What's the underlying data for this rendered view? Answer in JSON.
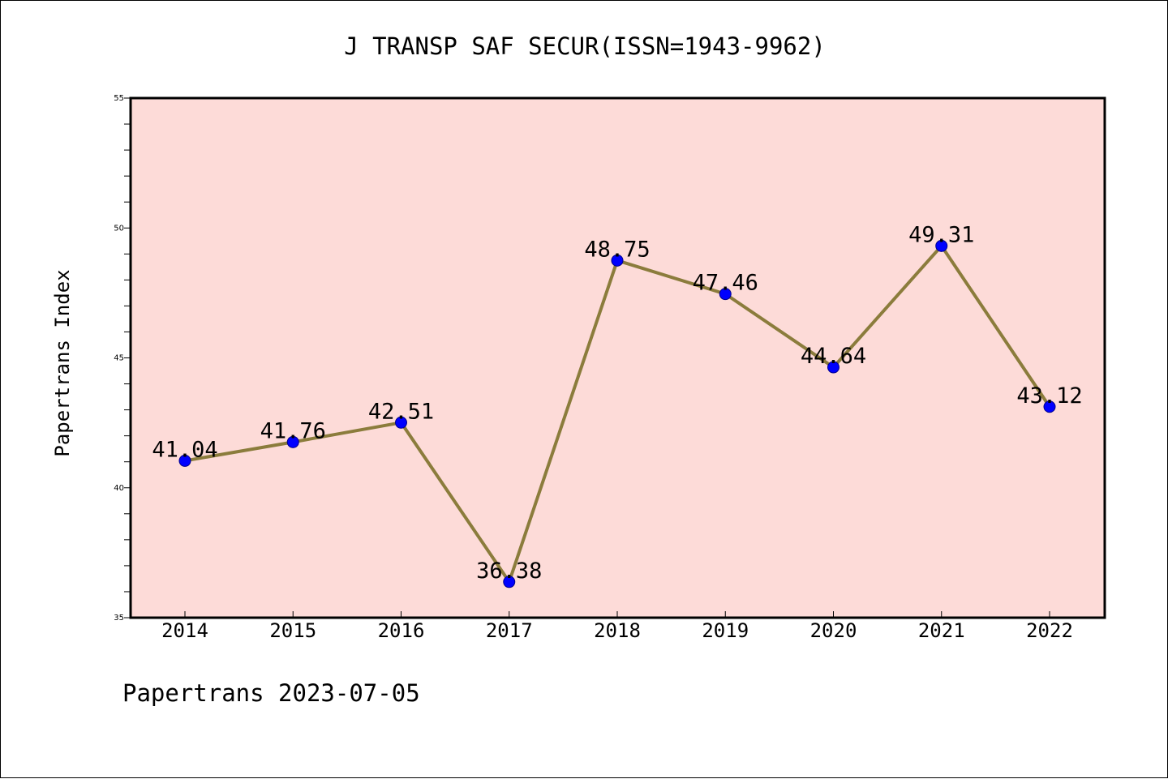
{
  "chart_data": {
    "type": "line",
    "title": "J TRANSP SAF SECUR(ISSN=1943-9962)",
    "ylabel": "Papertrans Index",
    "xlabel": "",
    "footer": "Papertrans 2023-07-05",
    "categories": [
      "2014",
      "2015",
      "2016",
      "2017",
      "2018",
      "2019",
      "2020",
      "2021",
      "2022"
    ],
    "values": [
      41.04,
      41.76,
      42.51,
      36.38,
      48.75,
      47.46,
      44.64,
      49.31,
      43.12
    ],
    "data_labels": [
      "41.04",
      "41.76",
      "42.51",
      "36.38",
      "48.75",
      "47.46",
      "44.64",
      "49.31",
      "43.12"
    ],
    "ylim": [
      35,
      55
    ],
    "yticks": [
      "35",
      "40",
      "45",
      "50",
      "55"
    ],
    "grid": false,
    "colors": {
      "plot_background": "#fddbd8",
      "line": "#8b7c3c",
      "marker": "#0000ff"
    }
  }
}
